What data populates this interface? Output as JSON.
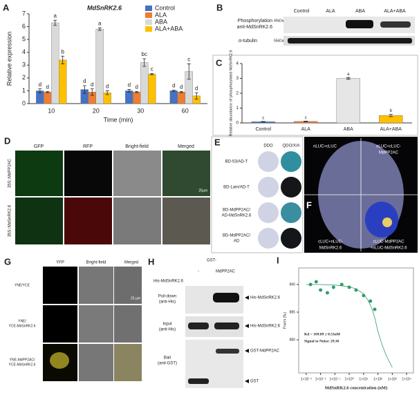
{
  "chart_data": [
    {
      "type": "grouped_bar",
      "panel": "A",
      "title": "MdSnRK2.6",
      "x_label": "Time (min)",
      "y_label": "Relative expression",
      "categories": [
        "10",
        "20",
        "30",
        "60"
      ],
      "ylim": [
        0,
        7
      ],
      "yticks": [
        0,
        1,
        2,
        3,
        4,
        5,
        6,
        7
      ],
      "series": [
        {
          "name": "Control",
          "color": "#4472c4",
          "values": [
            1.0,
            1.1,
            1.0,
            1.0
          ],
          "errors": [
            0.15,
            0.3,
            0.1,
            0.05
          ],
          "letters": [
            "d",
            "d",
            "d",
            "d"
          ]
        },
        {
          "name": "ALA",
          "color": "#ed7d31",
          "values": [
            0.9,
            0.9,
            0.9,
            0.9
          ],
          "errors": [
            0.05,
            0.25,
            0.05,
            0.05
          ],
          "letters": [
            "d",
            "d",
            "d",
            "d"
          ]
        },
        {
          "name": "ABA",
          "color": "#d9d9d9",
          "values": [
            6.3,
            5.8,
            3.2,
            2.5
          ],
          "errors": [
            0.2,
            0.1,
            0.3,
            0.6
          ],
          "letters": [
            "a",
            "a",
            "bc",
            "c"
          ]
        },
        {
          "name": "ALA+ABA",
          "color": "#ffc000",
          "values": [
            3.4,
            0.85,
            2.3,
            0.6
          ],
          "errors": [
            0.3,
            0.15,
            0.05,
            0.25
          ],
          "letters": [
            "b",
            "d",
            "c",
            "d"
          ]
        }
      ]
    },
    {
      "type": "bar",
      "panel": "C",
      "y_label": "Relative abundance of phosphorylated MdSnRK2.6",
      "categories": [
        "Control",
        "ALA",
        "ABA",
        "ALA+ABA"
      ],
      "values": [
        0.08,
        0.1,
        3.0,
        0.5
      ],
      "errors": [
        0.02,
        0.02,
        0.06,
        0.08
      ],
      "letters": [
        "c",
        "c",
        "a",
        "b"
      ],
      "colors": [
        "#4472c4",
        "#ed7d31",
        "#e7e6e6",
        "#ffc000"
      ],
      "ylim": [
        0,
        4
      ],
      "yticks": [
        0,
        1,
        2,
        3,
        4
      ]
    },
    {
      "type": "scatter",
      "panel": "I",
      "x_label": "MdSnRK2.6 concentration (nM)",
      "y_label": "Fnorm (‰)",
      "log_x": true,
      "color": "#2e9e6b",
      "annotations": [
        "Kd = 109.89 ± 0.53uM",
        "Signal to Noise: 29.36"
      ],
      "xlim": [
        0.0003,
        30000
      ],
      "xticks": [
        {
          "value": 0.001,
          "label": "1×10⁻³"
        },
        {
          "value": 0.01,
          "label": "1×10⁻²"
        },
        {
          "value": 0.1,
          "label": "1×10⁻¹"
        },
        {
          "value": 1,
          "label": "1×10⁰"
        },
        {
          "value": 10,
          "label": "1×10¹"
        },
        {
          "value": 100,
          "label": "1×10²"
        },
        {
          "value": 1000,
          "label": "1×10³"
        },
        {
          "value": 10000,
          "label": "1×10⁴"
        }
      ],
      "ylim": [
        874,
        893
      ],
      "yticks": [
        880,
        885,
        890
      ],
      "x": [
        0.002,
        0.005,
        0.01,
        0.03,
        0.08,
        0.3,
        1,
        3,
        10,
        30,
        60
      ],
      "y": [
        890,
        890.5,
        889,
        888.5,
        889.5,
        890,
        889.5,
        889,
        888,
        887,
        885.5
      ],
      "fit": {
        "x": [
          0.001,
          0.01,
          0.1,
          1,
          3,
          10,
          20,
          40,
          60,
          100,
          200,
          400,
          1000
        ],
        "y": [
          890,
          890,
          889.9,
          889.6,
          889.2,
          888.3,
          887.2,
          885.5,
          884,
          881.5,
          879,
          877,
          875
        ]
      }
    }
  ],
  "panel_b": {
    "label": "B",
    "lanes": [
      "Control",
      "ALA",
      "ABA",
      "ALA+ABA"
    ],
    "rows": [
      "Phosphorylation",
      "anti-MdSnRK2.6",
      "α-tubulin"
    ],
    "sizes": [
      "45kDa",
      "55kDa"
    ]
  },
  "panel_d": {
    "label": "D",
    "columns": [
      "GFP",
      "RFP",
      "Bright-field",
      "Merged"
    ],
    "rows": [
      "35S::MdPP2AC",
      "35S::MdSnRK2.6"
    ],
    "scale": "25μm"
  },
  "panel_e": {
    "label": "E",
    "columns": [
      "DDO",
      "QDO/X/A"
    ],
    "rows": [
      [
        "BD-53/AD-T"
      ],
      [
        "BD-Lam/AD-T"
      ],
      [
        "BD-MdPP2AC/",
        "AD-MdSnRK2.6"
      ],
      [
        "BD-MdPP2AC/",
        "AD"
      ]
    ]
  },
  "panel_f": {
    "label": "F",
    "quadrants": [
      [
        "nLUC+cLUC"
      ],
      [
        "nLUC+cLUC-",
        "MdPP2AC"
      ],
      [
        "cLUC+nLUC-",
        "MdSnRK2.6"
      ],
      [
        "cLUC-MdPP2AC",
        "+nLUC-MdSnRK2.6"
      ]
    ]
  },
  "panel_g": {
    "label": "G",
    "columns": [
      "YFP",
      "Bright-field",
      "Merged"
    ],
    "rows": [
      [
        "YNE/YCE"
      ],
      [
        "YNE/",
        "YCE-MdSnRK2.6"
      ],
      [
        "YNE-MdPP2AC/",
        "YCE-MdSnRK2.6"
      ]
    ],
    "scale": "25 μm"
  },
  "panel_h": {
    "label": "H",
    "header": "GST-",
    "lanes": [
      "-",
      "MdPP2AC"
    ],
    "row_label": "His-MdSnRK2.6",
    "blots": [
      [
        "Pull-down",
        "(anti-His)"
      ],
      [
        "Input",
        "(anti-His)"
      ],
      [
        "Bait",
        "(anti-GST)"
      ]
    ],
    "bands": [
      "His-MdSnRK2.6",
      "His-MdSnRK2.6",
      "GST-MdPP2AC",
      "GST"
    ]
  }
}
